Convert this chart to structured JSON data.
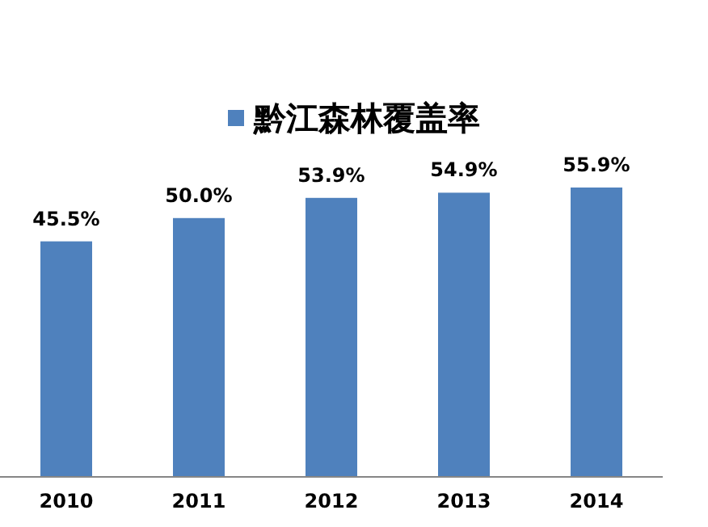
{
  "chart_data": {
    "type": "bar",
    "categories": [
      "2010",
      "2011",
      "2012",
      "2013",
      "2014"
    ],
    "series": [
      {
        "name": "黔江森林覆盖率",
        "color": "#4f81bd",
        "values": [
          45.5,
          50.0,
          53.9,
          54.9,
          55.9
        ],
        "value_labels": [
          "45.5%",
          "50.0%",
          "53.9%",
          "54.9%",
          "55.9%"
        ]
      }
    ],
    "legend": "top"
  }
}
